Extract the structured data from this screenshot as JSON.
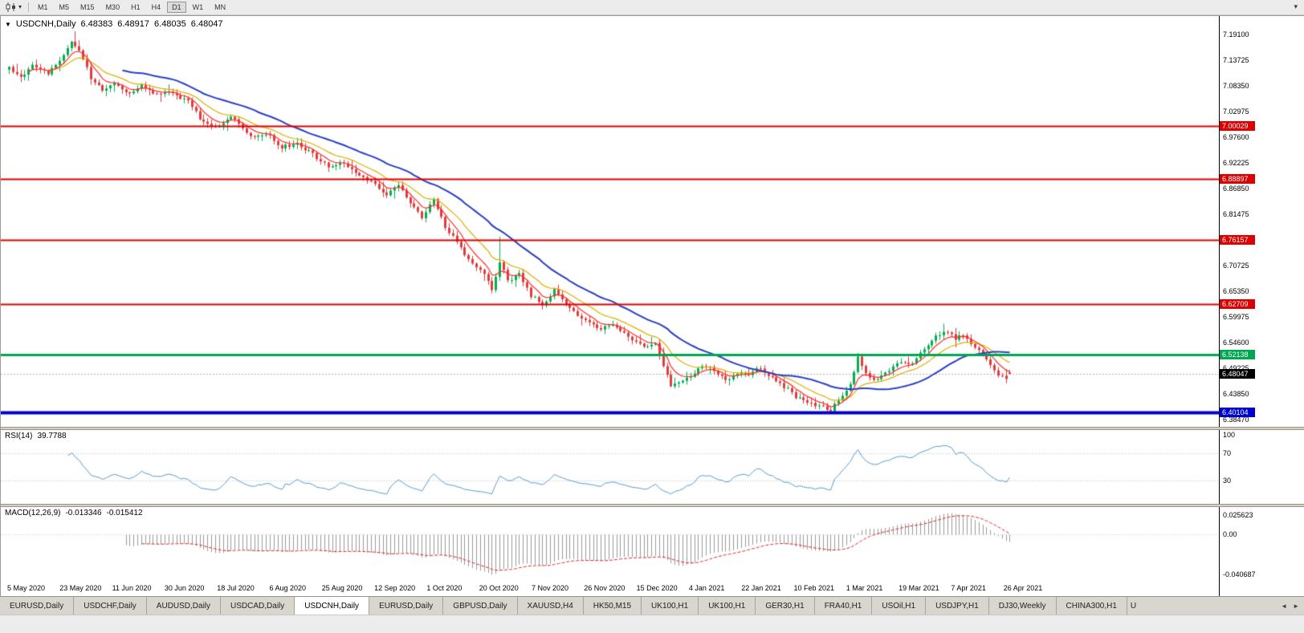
{
  "toolbar": {
    "timeframes": [
      "M1",
      "M5",
      "M15",
      "M30",
      "H1",
      "H4",
      "D1",
      "W1",
      "MN"
    ],
    "active_timeframe": "D1",
    "overflow_icon": "▾",
    "chart_type_caret": "▾"
  },
  "chart": {
    "symbol_period": "USDCNH,Daily",
    "open": "6.48383",
    "high": "6.48917",
    "low": "6.48035",
    "close": "6.48047",
    "current_price": "6.48047",
    "collapse_icon": "▼"
  },
  "price_axis": {
    "ticks": [
      "7.19100",
      "7.13725",
      "7.08350",
      "7.02975",
      "6.97600",
      "6.92225",
      "6.86850",
      "6.81475",
      "6.76100",
      "6.70725",
      "6.65350",
      "6.59975",
      "6.54600",
      "6.49225",
      "6.43850",
      "6.38470"
    ]
  },
  "levels": [
    {
      "label": "7.00029",
      "value": 7.00029,
      "color": "#dd0000",
      "width": 2
    },
    {
      "label": "6.88897",
      "value": 6.88897,
      "color": "#dd0000",
      "width": 2
    },
    {
      "label": "6.76157",
      "value": 6.76157,
      "color": "#dd0000",
      "width": 2
    },
    {
      "label": "6.62709",
      "value": 6.62709,
      "color": "#dd0000",
      "width": 2
    },
    {
      "label": "6.52138",
      "value": 6.52138,
      "color": "#00a651",
      "width": 3
    },
    {
      "label": "6.40104",
      "value": 6.40104,
      "color": "#0000cc",
      "width": 4
    }
  ],
  "rsi": {
    "name": "RSI(14)",
    "value": "39.7788",
    "ticks": [
      "100",
      "70",
      "30"
    ],
    "guide_levels": [
      70,
      30
    ],
    "color": "#569bd2"
  },
  "macd": {
    "name": "MACD(12,26,9)",
    "value_main": "-0.013346",
    "value_signal": "-0.015412",
    "tick_top": "0.025623",
    "tick_zero": "0.00",
    "tick_bottom": "-0.040687",
    "bar_color": "#9a9a9a",
    "signal_color": "#e02a2a"
  },
  "date_axis": {
    "labels": [
      "5 May 2020",
      "23 May 2020",
      "11 Jun 2020",
      "30 Jun 2020",
      "18 Jul 2020",
      "6 Aug 2020",
      "25 Aug 2020",
      "12 Sep 2020",
      "1 Oct 2020",
      "20 Oct 2020",
      "7 Nov 2020",
      "26 Nov 2020",
      "15 Dec 2020",
      "4 Jan 2021",
      "22 Jan 2021",
      "10 Feb 2021",
      "1 Mar 2021",
      "19 Mar 2021",
      "7 Apr 2021",
      "26 Apr 2021"
    ]
  },
  "tabs": {
    "items": [
      "EURUSD,Daily",
      "USDCHF,Daily",
      "AUDUSD,Daily",
      "USDCAD,Daily",
      "USDCNH,Daily",
      "EURUSD,Daily",
      "GBPUSD,Daily",
      "XAUUSD,H4",
      "HK50,M15",
      "UK100,H1",
      "UK100,H1",
      "GER30,H1",
      "FRA40,H1",
      "USOil,H1",
      "USDJPY,H1",
      "DJ30,Weekly",
      "CHINA300,H1"
    ],
    "active_index": 4,
    "partial_tab": "U",
    "scroll_left_icon": "◄",
    "scroll_right_icon": "►"
  },
  "chart_data": {
    "type": "candlestick",
    "symbol": "USDCNH",
    "timeframe": "Daily",
    "price_range": {
      "min": 6.37,
      "max": 7.23
    },
    "candle_count": 258,
    "up_color": "#00b050",
    "down_color": "#e23b3b",
    "trend_anchors": [
      [
        0,
        7.12
      ],
      [
        3,
        7.1
      ],
      [
        6,
        7.13
      ],
      [
        10,
        7.11
      ],
      [
        13,
        7.14
      ],
      [
        16,
        7.175
      ],
      [
        18,
        7.16
      ],
      [
        21,
        7.1
      ],
      [
        24,
        7.075
      ],
      [
        27,
        7.09
      ],
      [
        31,
        7.065
      ],
      [
        34,
        7.085
      ],
      [
        38,
        7.065
      ],
      [
        42,
        7.07
      ],
      [
        46,
        7.05
      ],
      [
        50,
        7.005
      ],
      [
        54,
        7.0
      ],
      [
        57,
        7.02
      ],
      [
        60,
        6.995
      ],
      [
        63,
        6.975
      ],
      [
        66,
        6.985
      ],
      [
        70,
        6.955
      ],
      [
        74,
        6.965
      ],
      [
        78,
        6.94
      ],
      [
        82,
        6.915
      ],
      [
        86,
        6.925
      ],
      [
        90,
        6.895
      ],
      [
        94,
        6.88
      ],
      [
        97,
        6.855
      ],
      [
        100,
        6.875
      ],
      [
        103,
        6.84
      ],
      [
        106,
        6.81
      ],
      [
        109,
        6.845
      ],
      [
        112,
        6.79
      ],
      [
        115,
        6.755
      ],
      [
        118,
        6.72
      ],
      [
        121,
        6.7
      ],
      [
        124,
        6.66
      ],
      [
        126,
        6.715
      ],
      [
        128,
        6.675
      ],
      [
        131,
        6.69
      ],
      [
        134,
        6.645
      ],
      [
        137,
        6.625
      ],
      [
        140,
        6.655
      ],
      [
        143,
        6.63
      ],
      [
        146,
        6.605
      ],
      [
        149,
        6.59
      ],
      [
        152,
        6.575
      ],
      [
        155,
        6.585
      ],
      [
        158,
        6.565
      ],
      [
        161,
        6.55
      ],
      [
        164,
        6.535
      ],
      [
        166,
        6.545
      ],
      [
        168,
        6.5
      ],
      [
        170,
        6.455
      ],
      [
        172,
        6.462
      ],
      [
        175,
        6.478
      ],
      [
        178,
        6.5
      ],
      [
        181,
        6.49
      ],
      [
        184,
        6.465
      ],
      [
        187,
        6.478
      ],
      [
        190,
        6.482
      ],
      [
        193,
        6.492
      ],
      [
        196,
        6.47
      ],
      [
        199,
        6.455
      ],
      [
        202,
        6.432
      ],
      [
        205,
        6.42
      ],
      [
        208,
        6.412
      ],
      [
        211,
        6.405
      ],
      [
        213,
        6.425
      ],
      [
        216,
        6.46
      ],
      [
        218,
        6.515
      ],
      [
        220,
        6.48
      ],
      [
        223,
        6.468
      ],
      [
        226,
        6.49
      ],
      [
        229,
        6.508
      ],
      [
        232,
        6.5
      ],
      [
        235,
        6.535
      ],
      [
        238,
        6.558
      ],
      [
        240,
        6.572
      ],
      [
        243,
        6.556
      ],
      [
        245,
        6.565
      ],
      [
        247,
        6.545
      ],
      [
        250,
        6.525
      ],
      [
        252,
        6.502
      ],
      [
        254,
        6.478
      ],
      [
        256,
        6.472
      ],
      [
        257,
        6.4805
      ]
    ],
    "wick_overrides": [
      {
        "i": 17,
        "high": 7.198
      },
      {
        "i": 126,
        "high": 6.768
      },
      {
        "i": 211,
        "low": 6.398
      },
      {
        "i": 240,
        "high": 6.586
      }
    ],
    "last_candle": {
      "o": 6.48383,
      "h": 6.48917,
      "l": 6.48035,
      "c": 6.48047
    },
    "moving_averages": [
      {
        "name": "ma-fast",
        "type": "ema",
        "period": 6,
        "color": "#ff2a2a",
        "width": 1.2
      },
      {
        "name": "ma-mid",
        "type": "ema",
        "period": 14,
        "color": "#e0ae00",
        "width": 1.2
      },
      {
        "name": "ma-slow",
        "type": "sma",
        "period": 30,
        "color": "#2b3fc4",
        "width": 2
      }
    ]
  }
}
